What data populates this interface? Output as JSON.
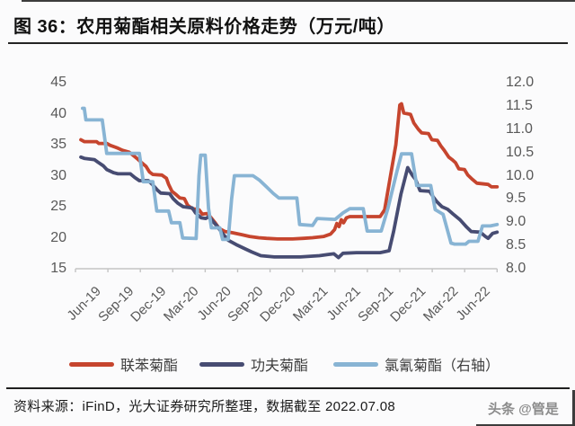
{
  "page": {
    "title": "图 36：农用菊酯相关原料价格走势（万元/吨）",
    "source_note": "资料来源：iFinD，光大证券研究所整理，数据截至 2022.07.08",
    "watermark": "头条 @管是"
  },
  "chart_data": {
    "type": "line",
    "title": "农用菊酯相关原料价格走势",
    "unit": "万元/吨",
    "grid": false,
    "legend_position": "bottom",
    "x_axis": {
      "labels": [
        "Jun-19",
        "Sep-19",
        "Dec-19",
        "Mar-20",
        "Jun-20",
        "Sep-20",
        "Dec-20",
        "Mar-21",
        "Jun-21",
        "Sep-21",
        "Dec-21",
        "Mar-22",
        "Jun-22"
      ],
      "months_span": 37,
      "start": "Jun-19",
      "end": "Jul-22"
    },
    "left_axis": {
      "min": 15,
      "max": 45,
      "ticks": [
        45,
        40,
        35,
        30,
        25,
        20,
        15
      ]
    },
    "right_axis": {
      "min": 8.0,
      "max": 12.0,
      "ticks": [
        "12.0",
        "11.5",
        "11.0",
        "10.5",
        "10.0",
        "9.5",
        "9.0",
        "8.5",
        "8.0"
      ]
    },
    "axis_color": "#c4c4c4",
    "series": [
      {
        "name": "联苯菊酯",
        "axis": "left",
        "color": "#c6452e",
        "points": [
          [
            0,
            35.8
          ],
          [
            0.3,
            35.5
          ],
          [
            1.4,
            35.5
          ],
          [
            1.6,
            35.2
          ],
          [
            2.3,
            35.2
          ],
          [
            2.6,
            34.9
          ],
          [
            3.2,
            34.5
          ],
          [
            3.7,
            34.1
          ],
          [
            4.3,
            33.8
          ],
          [
            4.7,
            33.2
          ],
          [
            5.1,
            32.6
          ],
          [
            5.4,
            32.1
          ],
          [
            5.8,
            31.5
          ],
          [
            6.1,
            30.6
          ],
          [
            6.4,
            30.2
          ],
          [
            7.2,
            30.1
          ],
          [
            7.6,
            29.6
          ],
          [
            7.8,
            28.6
          ],
          [
            8.1,
            27.5
          ],
          [
            8.5,
            26.9
          ],
          [
            8.8,
            26.4
          ],
          [
            9.2,
            26.3
          ],
          [
            9.5,
            25.2
          ],
          [
            9.9,
            24.7
          ],
          [
            10.5,
            24.5
          ],
          [
            10.8,
            23.8
          ],
          [
            11.2,
            23.9
          ],
          [
            11.5,
            23.4
          ],
          [
            11.9,
            22.5
          ],
          [
            12.3,
            21.5
          ],
          [
            12.8,
            21
          ],
          [
            13.5,
            20.8
          ],
          [
            14.3,
            20.5
          ],
          [
            15,
            20.2
          ],
          [
            15.8,
            20
          ],
          [
            16.5,
            19.9
          ],
          [
            17.5,
            19.8
          ],
          [
            18.8,
            19.8
          ],
          [
            19.8,
            19.9
          ],
          [
            20.6,
            20
          ],
          [
            21.6,
            20.2
          ],
          [
            22.2,
            20.6
          ],
          [
            22.55,
            21.3
          ],
          [
            22.75,
            22.3
          ],
          [
            22.95,
            21.8
          ],
          [
            23.15,
            22.9
          ],
          [
            23.35,
            22.4
          ],
          [
            23.6,
            23.2
          ],
          [
            23.9,
            23.4
          ],
          [
            26.6,
            23.4
          ],
          [
            27,
            24.5
          ],
          [
            28,
            35
          ],
          [
            28.35,
            41.4
          ],
          [
            28.5,
            41.6
          ],
          [
            28.7,
            40.1
          ],
          [
            29.3,
            39.9
          ],
          [
            29.6,
            38.5
          ],
          [
            30,
            37.5
          ],
          [
            30.3,
            36.9
          ],
          [
            30.9,
            36.8
          ],
          [
            31.2,
            35.8
          ],
          [
            31.7,
            35.7
          ],
          [
            32,
            34.8
          ],
          [
            32.3,
            34.1
          ],
          [
            32.7,
            33
          ],
          [
            33,
            32.6
          ],
          [
            33.3,
            32.1
          ],
          [
            33.6,
            31.1
          ],
          [
            34.1,
            31
          ],
          [
            34.4,
            30.1
          ],
          [
            34.8,
            29.4
          ],
          [
            35.2,
            28.8
          ],
          [
            36.2,
            28.6
          ],
          [
            36.5,
            28.2
          ],
          [
            37,
            28.2
          ]
        ]
      },
      {
        "name": "功夫菊酯",
        "axis": "left",
        "color": "#474c72",
        "points": [
          [
            0,
            33
          ],
          [
            0.3,
            32.8
          ],
          [
            1.2,
            32.6
          ],
          [
            1.5,
            32.2
          ],
          [
            2,
            31.6
          ],
          [
            2.3,
            31
          ],
          [
            2.9,
            30.5
          ],
          [
            3.3,
            30.3
          ],
          [
            4.4,
            30.3
          ],
          [
            4.8,
            29.7
          ],
          [
            5.2,
            29.2
          ],
          [
            6,
            29.2
          ],
          [
            6.4,
            28.5
          ],
          [
            6.8,
            27.7
          ],
          [
            7.1,
            27.2
          ],
          [
            7.9,
            27.1
          ],
          [
            8.2,
            26.3
          ],
          [
            8.6,
            25.6
          ],
          [
            9.1,
            25
          ],
          [
            9.9,
            24.8
          ],
          [
            10.2,
            24
          ],
          [
            10.7,
            23.2
          ],
          [
            11.1,
            23.1
          ],
          [
            11.4,
            23.4
          ],
          [
            11.8,
            22.5
          ],
          [
            12.1,
            21.9
          ],
          [
            12.5,
            20.9
          ],
          [
            13.1,
            19.6
          ],
          [
            13.8,
            18.9
          ],
          [
            14.6,
            18.2
          ],
          [
            15.2,
            17.7
          ],
          [
            16,
            17.1
          ],
          [
            17.2,
            16.9
          ],
          [
            19.5,
            16.9
          ],
          [
            21.2,
            17.1
          ],
          [
            22,
            17.3
          ],
          [
            22.5,
            17.4
          ],
          [
            22.9,
            16.8
          ],
          [
            23.3,
            17.5
          ],
          [
            24.5,
            17.6
          ],
          [
            26.6,
            17.6
          ],
          [
            27.4,
            17.9
          ],
          [
            27.8,
            21
          ],
          [
            28.45,
            27
          ],
          [
            29.05,
            31.3
          ],
          [
            29.45,
            30.1
          ],
          [
            29.75,
            29.4
          ],
          [
            30.15,
            27.6
          ],
          [
            31,
            27.5
          ],
          [
            31.35,
            26.5
          ],
          [
            31.65,
            25.8
          ],
          [
            32.1,
            25
          ],
          [
            32.6,
            24.6
          ],
          [
            33.1,
            23.8
          ],
          [
            33.7,
            22.9
          ],
          [
            34.3,
            21.7
          ],
          [
            34.7,
            21
          ],
          [
            35.5,
            20.9
          ],
          [
            35.95,
            20.2
          ],
          [
            36.2,
            19.9
          ],
          [
            36.6,
            20.7
          ],
          [
            37,
            20.9
          ]
        ]
      },
      {
        "name": "氯氰菊酯（右轴）",
        "axis": "right",
        "color": "#88b4d4",
        "points": [
          [
            0.15,
            11.45
          ],
          [
            0.3,
            11.45
          ],
          [
            0.45,
            11.2
          ],
          [
            1.9,
            11.2
          ],
          [
            2.3,
            10.48
          ],
          [
            5.2,
            10.48
          ],
          [
            5.55,
            9.87
          ],
          [
            6.4,
            9.87
          ],
          [
            6.75,
            9.24
          ],
          [
            7.8,
            9.24
          ],
          [
            8.05,
            8.99
          ],
          [
            8.8,
            8.99
          ],
          [
            9.05,
            8.66
          ],
          [
            10.25,
            8.65
          ],
          [
            10.5,
            10
          ],
          [
            10.65,
            10.44
          ],
          [
            11.05,
            10.44
          ],
          [
            11.35,
            9.3
          ],
          [
            11.6,
            8.88
          ],
          [
            12.35,
            8.88
          ],
          [
            12.6,
            8.63
          ],
          [
            13.1,
            8.63
          ],
          [
            13.4,
            9.5
          ],
          [
            13.65,
            10
          ],
          [
            15.3,
            10
          ],
          [
            15.9,
            9.9
          ],
          [
            16.5,
            9.76
          ],
          [
            17.1,
            9.62
          ],
          [
            17.6,
            9.52
          ],
          [
            19.2,
            9.52
          ],
          [
            19.45,
            8.95
          ],
          [
            20.6,
            8.93
          ],
          [
            21,
            9.08
          ],
          [
            22.6,
            9.06
          ],
          [
            23.3,
            9.2
          ],
          [
            23.9,
            9.29
          ],
          [
            25.1,
            9.29
          ],
          [
            25.45,
            8.81
          ],
          [
            26.7,
            8.81
          ],
          [
            27.3,
            9.3
          ],
          [
            28.1,
            10.1
          ],
          [
            28.5,
            10.47
          ],
          [
            29.4,
            10.47
          ],
          [
            29.85,
            9.79
          ],
          [
            31.1,
            9.79
          ],
          [
            31.5,
            9.27
          ],
          [
            32.2,
            9.17
          ],
          [
            32.9,
            8.55
          ],
          [
            33.2,
            8.53
          ],
          [
            34.2,
            8.53
          ],
          [
            34.5,
            8.59
          ],
          [
            35.3,
            8.59
          ],
          [
            35.7,
            8.92
          ],
          [
            36.4,
            8.92
          ],
          [
            37,
            8.95
          ]
        ]
      }
    ]
  }
}
